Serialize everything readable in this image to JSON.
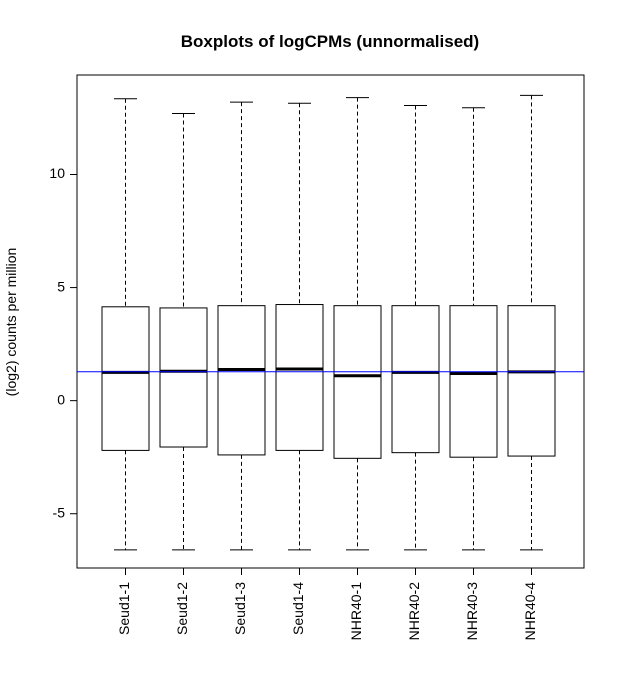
{
  "chart_data": {
    "type": "boxplot",
    "title": "Boxplots of logCPMs (unnormalised)",
    "xlabel": "",
    "ylabel": "(log2) counts per million",
    "ylim": [
      -7.4,
      14.4
    ],
    "yticks": [
      -5,
      0,
      5,
      10
    ],
    "ytick_labels": [
      "-5",
      "0",
      "5",
      "10"
    ],
    "categories": [
      "Seud1-1",
      "Seud1-2",
      "Seud1-3",
      "Seud1-4",
      "NHR40-1",
      "NHR40-2",
      "NHR40-3",
      "NHR40-4"
    ],
    "series": [
      {
        "boxes": [
          {
            "min": -6.6,
            "q1": -2.2,
            "median": 1.25,
            "q3": 4.15,
            "max": 13.35
          },
          {
            "min": -6.6,
            "q1": -2.05,
            "median": 1.3,
            "q3": 4.1,
            "max": 12.7
          },
          {
            "min": -6.6,
            "q1": -2.4,
            "median": 1.38,
            "q3": 4.2,
            "max": 13.2
          },
          {
            "min": -6.6,
            "q1": -2.2,
            "median": 1.4,
            "q3": 4.25,
            "max": 13.15
          },
          {
            "min": -6.6,
            "q1": -2.55,
            "median": 1.1,
            "q3": 4.2,
            "max": 13.4
          },
          {
            "min": -6.6,
            "q1": -2.3,
            "median": 1.25,
            "q3": 4.2,
            "max": 13.05
          },
          {
            "min": -6.6,
            "q1": -2.5,
            "median": 1.2,
            "q3": 4.2,
            "max": 12.95
          },
          {
            "min": -6.6,
            "q1": -2.45,
            "median": 1.27,
            "q3": 4.2,
            "max": 13.5
          }
        ]
      }
    ],
    "reference_line": {
      "y": 1.28,
      "color": "#0000ff"
    },
    "colors": {
      "box": "#000000",
      "median": "#000000",
      "reference": "#0000ff"
    },
    "grid": false
  }
}
